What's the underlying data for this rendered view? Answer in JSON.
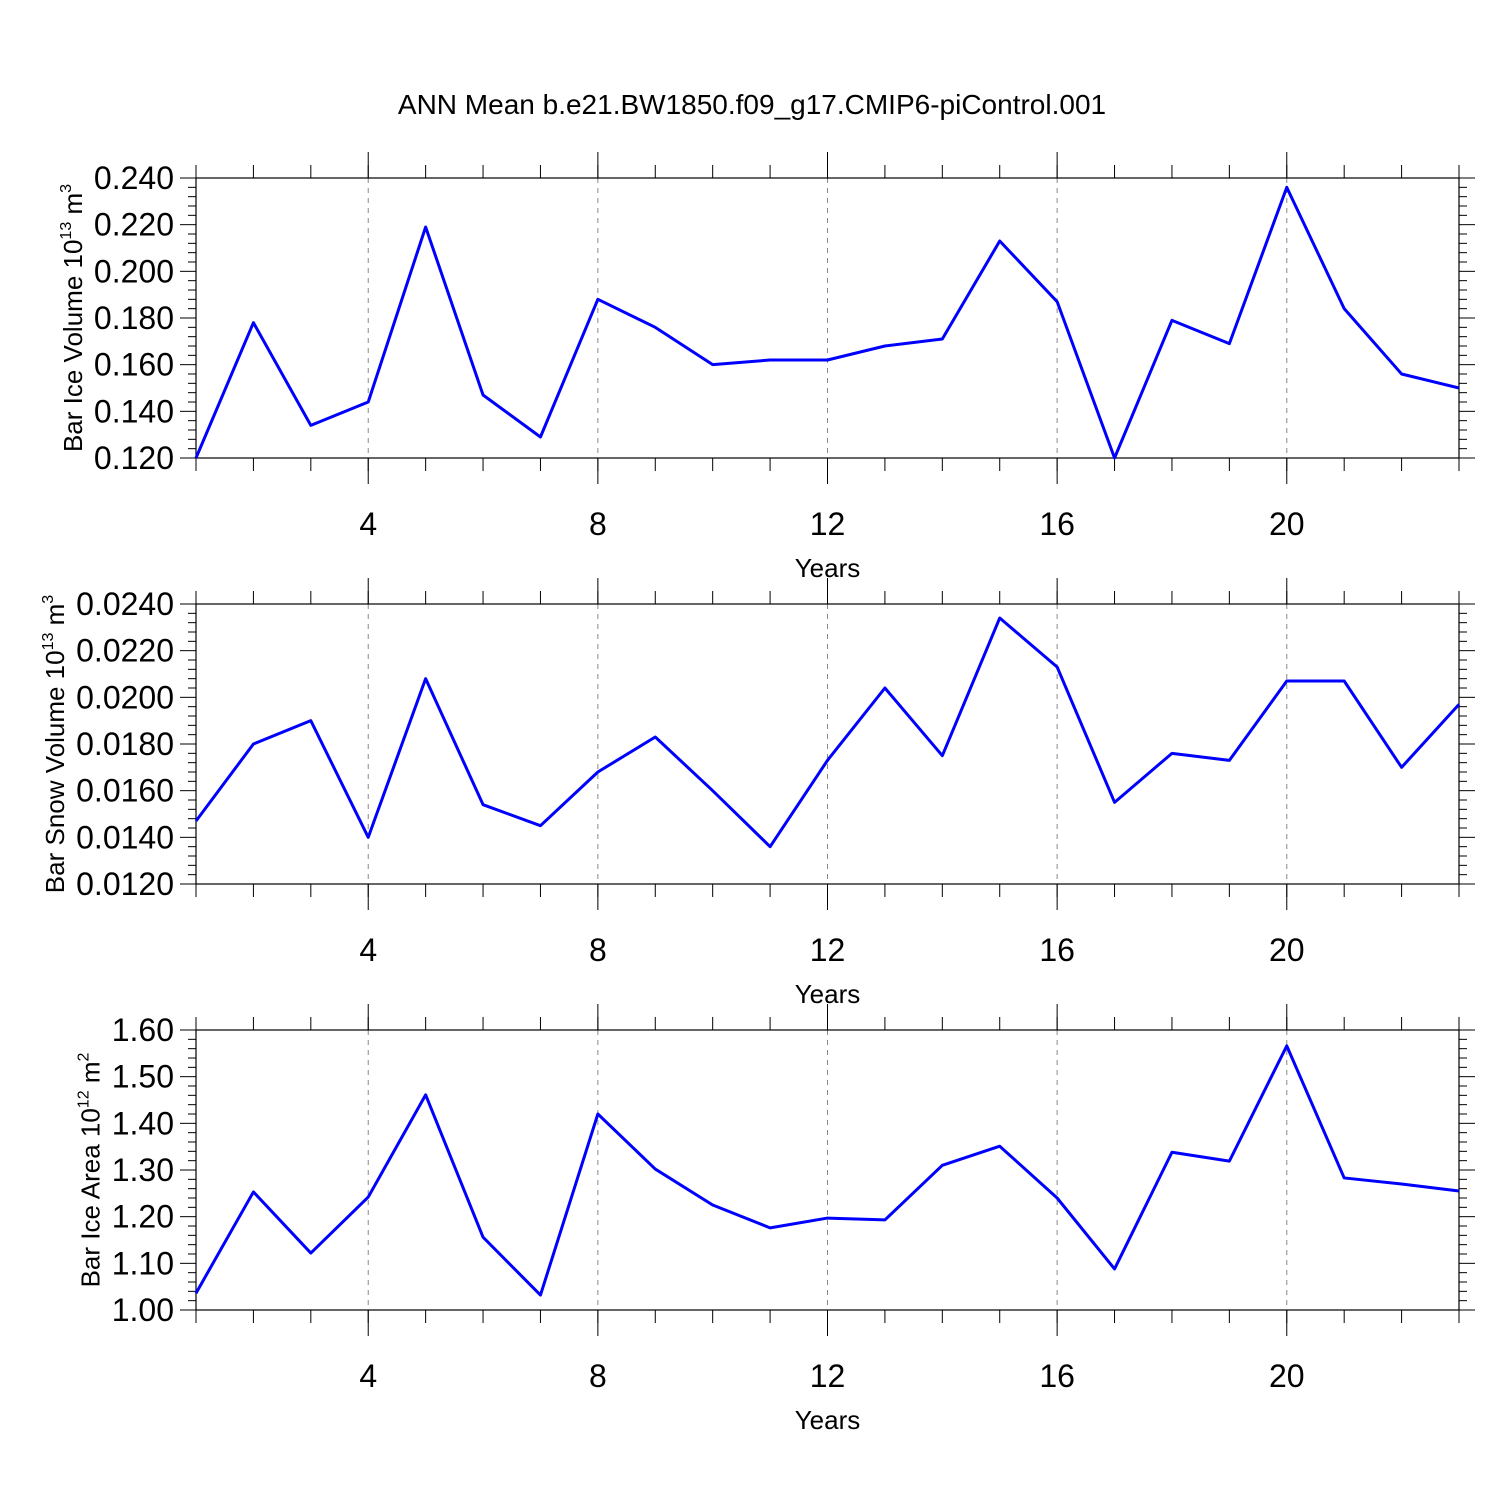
{
  "title": "ANN Mean b.e21.BW1850.f09_g17.CMIP6-piControl.001",
  "chart_data": [
    {
      "type": "line",
      "xlabel": "Years",
      "ylabel": [
        "Bar Ice Volume 10",
        "13",
        " m",
        "3"
      ],
      "x": [
        1,
        2,
        3,
        4,
        5,
        6,
        7,
        8,
        9,
        10,
        11,
        12,
        13,
        14,
        15,
        16,
        17,
        18,
        19,
        20,
        21,
        22,
        23
      ],
      "series": [
        {
          "color": "#0000ff",
          "values": [
            0.12,
            0.178,
            0.134,
            0.144,
            0.219,
            0.147,
            0.129,
            0.188,
            0.176,
            0.16,
            0.162,
            0.162,
            0.168,
            0.171,
            0.213,
            0.187,
            0.12,
            0.179,
            0.169,
            0.236,
            0.184,
            0.156,
            0.15
          ]
        }
      ],
      "xlim": [
        1,
        23
      ],
      "xticks": [
        4,
        8,
        12,
        16,
        20
      ],
      "ylim": [
        0.12,
        0.24
      ],
      "yticks": [
        {
          "value": 0.12,
          "label": "0.120"
        },
        {
          "value": 0.14,
          "label": "0.140"
        },
        {
          "value": 0.16,
          "label": "0.160"
        },
        {
          "value": 0.18,
          "label": "0.180"
        },
        {
          "value": 0.2,
          "label": "0.200"
        },
        {
          "value": 0.22,
          "label": "0.220"
        },
        {
          "value": 0.24,
          "label": "0.240"
        }
      ],
      "grid": true
    },
    {
      "type": "line",
      "xlabel": "Years",
      "ylabel": [
        "Bar Snow Volume 10",
        "13",
        " m",
        "3"
      ],
      "x": [
        1,
        2,
        3,
        4,
        5,
        6,
        7,
        8,
        9,
        10,
        11,
        12,
        13,
        14,
        15,
        16,
        17,
        18,
        19,
        20,
        21,
        22,
        23
      ],
      "series": [
        {
          "color": "#0000ff",
          "values": [
            0.0147,
            0.018,
            0.019,
            0.014,
            0.0208,
            0.0154,
            0.0145,
            0.0168,
            0.0183,
            0.016,
            0.0136,
            0.0173,
            0.0204,
            0.0175,
            0.0234,
            0.0213,
            0.0155,
            0.0176,
            0.0173,
            0.0207,
            0.0207,
            0.017,
            0.0197
          ]
        }
      ],
      "xlim": [
        1,
        23
      ],
      "xticks": [
        4,
        8,
        12,
        16,
        20
      ],
      "ylim": [
        0.012,
        0.024
      ],
      "yticks": [
        {
          "value": 0.012,
          "label": "0.0120"
        },
        {
          "value": 0.014,
          "label": "0.0140"
        },
        {
          "value": 0.016,
          "label": "0.0160"
        },
        {
          "value": 0.018,
          "label": "0.0180"
        },
        {
          "value": 0.02,
          "label": "0.0200"
        },
        {
          "value": 0.022,
          "label": "0.0220"
        },
        {
          "value": 0.024,
          "label": "0.0240"
        }
      ],
      "grid": true
    },
    {
      "type": "line",
      "xlabel": "Years",
      "ylabel": [
        "Bar Ice Area 10",
        "12",
        " m",
        "2"
      ],
      "x": [
        1,
        2,
        3,
        4,
        5,
        6,
        7,
        8,
        9,
        10,
        11,
        12,
        13,
        14,
        15,
        16,
        17,
        18,
        19,
        20,
        21,
        22,
        23
      ],
      "series": [
        {
          "color": "#0000ff",
          "values": [
            1.036,
            1.253,
            1.122,
            1.242,
            1.461,
            1.156,
            1.032,
            1.42,
            1.302,
            1.225,
            1.176,
            1.197,
            1.193,
            1.31,
            1.351,
            1.24,
            1.088,
            1.338,
            1.319,
            1.566,
            1.283,
            1.27,
            1.255
          ]
        }
      ],
      "xlim": [
        1,
        23
      ],
      "xticks": [
        4,
        8,
        12,
        16,
        20
      ],
      "ylim": [
        1.0,
        1.6
      ],
      "yticks": [
        {
          "value": 1.0,
          "label": "1.00"
        },
        {
          "value": 1.1,
          "label": "1.10"
        },
        {
          "value": 1.2,
          "label": "1.20"
        },
        {
          "value": 1.3,
          "label": "1.30"
        },
        {
          "value": 1.4,
          "label": "1.40"
        },
        {
          "value": 1.5,
          "label": "1.50"
        },
        {
          "value": 1.6,
          "label": "1.60"
        }
      ],
      "grid": true
    }
  ]
}
